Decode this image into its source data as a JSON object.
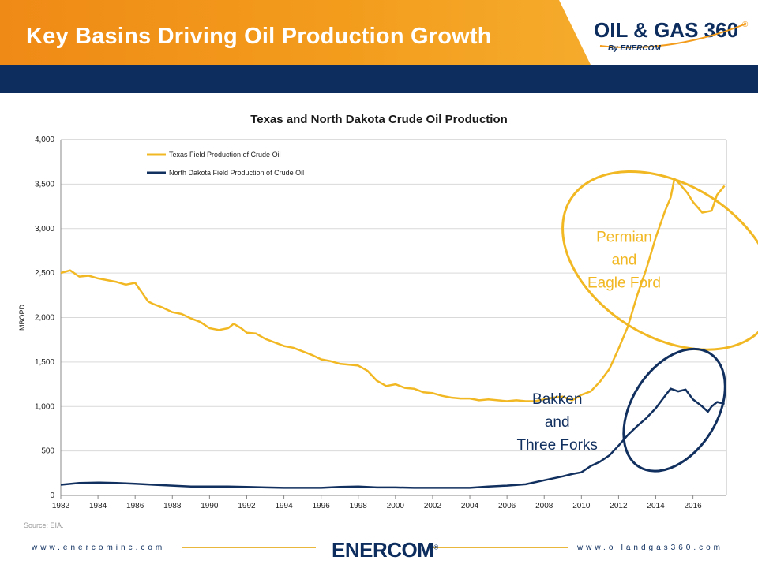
{
  "header": {
    "title": "Key Basins Driving Oil Production Growth",
    "logo_main": "OIL & GAS 360",
    "logo_registered": "®",
    "logo_sub": "By ENERCOM",
    "colors": {
      "orange": "#f39c1c",
      "navy": "#0c2d5e"
    }
  },
  "chart_data": {
    "type": "line",
    "title": "Texas and North Dakota Crude Oil Production",
    "xlabel": "",
    "ylabel": "MBOPD",
    "xlim": [
      1982,
      2017.8
    ],
    "ylim": [
      0,
      4000
    ],
    "x_ticks": [
      "1982",
      "1984",
      "1986",
      "1988",
      "1990",
      "1992",
      "1994",
      "1996",
      "1998",
      "2000",
      "2002",
      "2004",
      "2006",
      "2008",
      "2010",
      "2012",
      "2014",
      "2016"
    ],
    "y_ticks": [
      "0",
      "500",
      "1,000",
      "1,500",
      "2,000",
      "2,500",
      "3,000",
      "3,500",
      "4,000"
    ],
    "grid": "horizontal",
    "legend_position": "top-left",
    "series": [
      {
        "name": "Texas Field Production of Crude Oil",
        "color": "#f2b824",
        "points": [
          [
            1982,
            2500
          ],
          [
            1982.5,
            2530
          ],
          [
            1983,
            2460
          ],
          [
            1983.5,
            2470
          ],
          [
            1984,
            2440
          ],
          [
            1984.5,
            2420
          ],
          [
            1985,
            2400
          ],
          [
            1985.5,
            2370
          ],
          [
            1986,
            2390
          ],
          [
            1986.3,
            2300
          ],
          [
            1986.7,
            2180
          ],
          [
            1987,
            2150
          ],
          [
            1987.5,
            2110
          ],
          [
            1988,
            2060
          ],
          [
            1988.5,
            2040
          ],
          [
            1989,
            1990
          ],
          [
            1989.5,
            1950
          ],
          [
            1990,
            1880
          ],
          [
            1990.5,
            1860
          ],
          [
            1991,
            1880
          ],
          [
            1991.3,
            1930
          ],
          [
            1991.7,
            1880
          ],
          [
            1992,
            1830
          ],
          [
            1992.5,
            1820
          ],
          [
            1993,
            1760
          ],
          [
            1993.5,
            1720
          ],
          [
            1994,
            1680
          ],
          [
            1994.5,
            1660
          ],
          [
            1995,
            1620
          ],
          [
            1995.5,
            1580
          ],
          [
            1996,
            1530
          ],
          [
            1996.5,
            1510
          ],
          [
            1997,
            1480
          ],
          [
            1997.5,
            1470
          ],
          [
            1998,
            1460
          ],
          [
            1998.5,
            1400
          ],
          [
            1999,
            1290
          ],
          [
            1999.5,
            1230
          ],
          [
            2000,
            1250
          ],
          [
            2000.5,
            1210
          ],
          [
            2001,
            1200
          ],
          [
            2001.5,
            1160
          ],
          [
            2002,
            1150
          ],
          [
            2002.5,
            1120
          ],
          [
            2003,
            1100
          ],
          [
            2003.5,
            1090
          ],
          [
            2004,
            1090
          ],
          [
            2004.5,
            1070
          ],
          [
            2005,
            1080
          ],
          [
            2005.5,
            1070
          ],
          [
            2006,
            1060
          ],
          [
            2006.5,
            1070
          ],
          [
            2007,
            1060
          ],
          [
            2007.5,
            1060
          ],
          [
            2008,
            1080
          ],
          [
            2008.5,
            1100
          ],
          [
            2009,
            1110
          ],
          [
            2009.5,
            1070
          ],
          [
            2010,
            1130
          ],
          [
            2010.5,
            1170
          ],
          [
            2011,
            1280
          ],
          [
            2011.5,
            1420
          ],
          [
            2012,
            1650
          ],
          [
            2012.5,
            1900
          ],
          [
            2013,
            2250
          ],
          [
            2013.5,
            2550
          ],
          [
            2014,
            2900
          ],
          [
            2014.5,
            3200
          ],
          [
            2014.8,
            3350
          ],
          [
            2015,
            3560
          ],
          [
            2015.3,
            3500
          ],
          [
            2015.7,
            3400
          ],
          [
            2016,
            3300
          ],
          [
            2016.5,
            3180
          ],
          [
            2017,
            3200
          ],
          [
            2017.3,
            3380
          ],
          [
            2017.7,
            3480
          ]
        ]
      },
      {
        "name": "North Dakota Field Production of Crude Oil",
        "color": "#12305f",
        "points": [
          [
            1982,
            120
          ],
          [
            1983,
            140
          ],
          [
            1984,
            145
          ],
          [
            1985,
            140
          ],
          [
            1986,
            130
          ],
          [
            1987,
            120
          ],
          [
            1988,
            110
          ],
          [
            1989,
            100
          ],
          [
            1990,
            100
          ],
          [
            1991,
            100
          ],
          [
            1992,
            95
          ],
          [
            1993,
            90
          ],
          [
            1994,
            85
          ],
          [
            1995,
            85
          ],
          [
            1996,
            85
          ],
          [
            1997,
            95
          ],
          [
            1998,
            100
          ],
          [
            1999,
            90
          ],
          [
            2000,
            90
          ],
          [
            2001,
            85
          ],
          [
            2002,
            85
          ],
          [
            2003,
            85
          ],
          [
            2004,
            85
          ],
          [
            2005,
            100
          ],
          [
            2006,
            110
          ],
          [
            2007,
            125
          ],
          [
            2008,
            170
          ],
          [
            2009,
            215
          ],
          [
            2009.5,
            240
          ],
          [
            2010,
            260
          ],
          [
            2010.5,
            330
          ],
          [
            2011,
            380
          ],
          [
            2011.5,
            450
          ],
          [
            2012,
            560
          ],
          [
            2012.5,
            680
          ],
          [
            2013,
            780
          ],
          [
            2013.5,
            870
          ],
          [
            2014,
            980
          ],
          [
            2014.5,
            1120
          ],
          [
            2014.8,
            1200
          ],
          [
            2015.2,
            1170
          ],
          [
            2015.6,
            1190
          ],
          [
            2016,
            1080
          ],
          [
            2016.5,
            1000
          ],
          [
            2016.8,
            940
          ],
          [
            2017,
            1000
          ],
          [
            2017.3,
            1050
          ],
          [
            2017.7,
            1030
          ]
        ]
      }
    ],
    "annotations": [
      {
        "lines": [
          "Permian",
          "and",
          "Eagle Ford"
        ],
        "color": "#f2b824",
        "x": 2012.3,
        "y": 2850
      },
      {
        "lines": [
          "Bakken",
          "and",
          "Three Forks"
        ],
        "color": "#12305f",
        "x": 2008.7,
        "y": 1030
      }
    ],
    "ellipses": [
      {
        "color": "#f2b824",
        "cx": 2014.7,
        "cy": 2640,
        "rx_years": 4.1,
        "ry_value": 1300
      },
      {
        "color": "#12305f",
        "cx": 2015.0,
        "cy": 960,
        "rx_years": 3.6,
        "ry_value": 480
      }
    ]
  },
  "source": "Source: EIA.",
  "footer": {
    "left_url": "www.enercominc.com",
    "right_url": "www.oilandgas360.com",
    "logo": "ENERCOM",
    "logo_registered": "®"
  }
}
